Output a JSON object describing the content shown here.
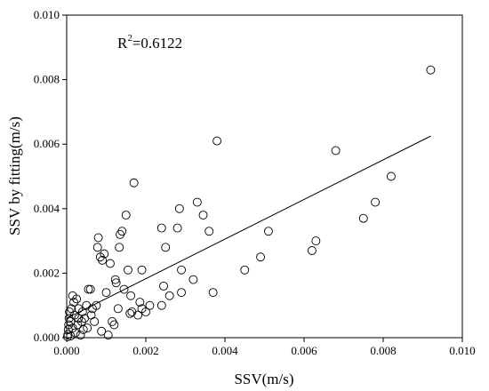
{
  "chart_data": {
    "type": "scatter",
    "xlabel": "SSV(m/s)",
    "ylabel": "SSV by fitting(m/s)",
    "xlim": [
      0,
      0.01
    ],
    "ylim": [
      0,
      0.01
    ],
    "x_ticks": [
      "0.000",
      "0.002",
      "0.004",
      "0.006",
      "0.008",
      "0.010"
    ],
    "y_ticks": [
      "0.000",
      "0.002",
      "0.004",
      "0.006",
      "0.008",
      "0.010"
    ],
    "grid": false,
    "legend": "none",
    "annotation": {
      "base": "R",
      "sup": "2",
      "rest": "=0.6122"
    },
    "fit_line": {
      "x": [
        0.0,
        0.0092
      ],
      "y": [
        0.0006,
        0.00625
      ]
    },
    "points": [
      [
        2e-05,
        3e-05
      ],
      [
        3e-05,
        0.0001
      ],
      [
        4e-05,
        0.00025
      ],
      [
        5e-05,
        0.0004
      ],
      [
        6e-05,
        0.0006
      ],
      [
        7e-05,
        0.0008
      ],
      [
        0.0001,
        5e-05
      ],
      [
        0.0001,
        0.0005
      ],
      [
        0.00012,
        0.0009
      ],
      [
        0.00015,
        0.0013
      ],
      [
        0.00015,
        0.0003
      ],
      [
        0.00018,
        0.0011
      ],
      [
        0.0002,
        0.0007
      ],
      [
        0.00022,
        0.00015
      ],
      [
        0.00025,
        0.0012
      ],
      [
        0.00028,
        0.0004
      ],
      [
        0.0003,
        0.0009
      ],
      [
        0.0003,
        0.0006
      ],
      [
        0.00035,
        8e-05
      ],
      [
        0.00038,
        0.0005
      ],
      [
        0.0004,
        0.0008
      ],
      [
        0.00042,
        0.00025
      ],
      [
        0.00045,
        0.0006
      ],
      [
        0.0005,
        0.001
      ],
      [
        0.00052,
        0.0003
      ],
      [
        0.00055,
        0.0015
      ],
      [
        0.0006,
        0.0015
      ],
      [
        0.00062,
        0.0007
      ],
      [
        0.00065,
        0.0009
      ],
      [
        0.0007,
        0.0005
      ],
      [
        0.00075,
        0.001
      ],
      [
        0.00078,
        0.0028
      ],
      [
        0.0008,
        0.0031
      ],
      [
        0.00085,
        0.0025
      ],
      [
        0.00088,
        0.0002
      ],
      [
        0.0009,
        0.0024
      ],
      [
        0.00095,
        0.0026
      ],
      [
        0.001,
        0.0014
      ],
      [
        0.00105,
        8e-05
      ],
      [
        0.0011,
        0.0023
      ],
      [
        0.00115,
        0.0005
      ],
      [
        0.0012,
        0.0004
      ],
      [
        0.00123,
        0.0018
      ],
      [
        0.00125,
        0.0017
      ],
      [
        0.0013,
        0.0009
      ],
      [
        0.00133,
        0.0028
      ],
      [
        0.00135,
        0.0032
      ],
      [
        0.0014,
        0.0033
      ],
      [
        0.00145,
        0.0015
      ],
      [
        0.0015,
        0.0038
      ],
      [
        0.00155,
        0.0021
      ],
      [
        0.0016,
        0.00075
      ],
      [
        0.00162,
        0.0013
      ],
      [
        0.00165,
        0.0008
      ],
      [
        0.0017,
        0.0048
      ],
      [
        0.0018,
        0.0007
      ],
      [
        0.00185,
        0.0011
      ],
      [
        0.0019,
        0.0021
      ],
      [
        0.0019,
        0.0009
      ],
      [
        0.002,
        0.0008
      ],
      [
        0.0021,
        0.001
      ],
      [
        0.0024,
        0.0034
      ],
      [
        0.0024,
        0.001
      ],
      [
        0.00245,
        0.0016
      ],
      [
        0.0025,
        0.0028
      ],
      [
        0.0026,
        0.0013
      ],
      [
        0.0028,
        0.0034
      ],
      [
        0.00285,
        0.004
      ],
      [
        0.0029,
        0.0021
      ],
      [
        0.0029,
        0.0014
      ],
      [
        0.0032,
        0.0018
      ],
      [
        0.0033,
        0.0042
      ],
      [
        0.00345,
        0.0038
      ],
      [
        0.0036,
        0.0033
      ],
      [
        0.0037,
        0.0014
      ],
      [
        0.0038,
        0.0061
      ],
      [
        0.0045,
        0.0021
      ],
      [
        0.0049,
        0.0025
      ],
      [
        0.0051,
        0.0033
      ],
      [
        0.0062,
        0.0027
      ],
      [
        0.0063,
        0.003
      ],
      [
        0.0068,
        0.0058
      ],
      [
        0.0075,
        0.0037
      ],
      [
        0.0078,
        0.0042
      ],
      [
        0.0082,
        0.005
      ],
      [
        0.0092,
        0.0083
      ]
    ]
  }
}
